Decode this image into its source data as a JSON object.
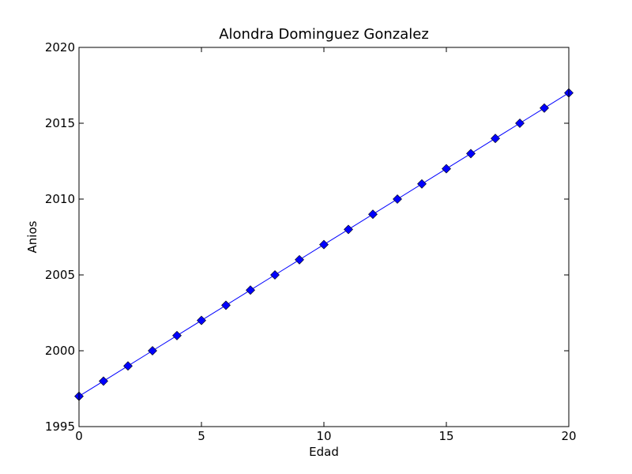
{
  "chart_data": {
    "type": "line",
    "title": "Alondra Dominguez Gonzalez",
    "xlabel": "Edad",
    "ylabel": "Anios",
    "xlim": [
      0,
      20
    ],
    "ylim": [
      1995,
      2020
    ],
    "x_ticks": [
      0,
      5,
      10,
      15,
      20
    ],
    "y_ticks": [
      1995,
      2000,
      2005,
      2010,
      2015,
      2020
    ],
    "grid": false,
    "series": [
      {
        "color": "#0000ff",
        "marker": "diamond",
        "x": [
          0,
          1,
          2,
          3,
          4,
          5,
          6,
          7,
          8,
          9,
          10,
          11,
          12,
          13,
          14,
          15,
          16,
          17,
          18,
          19,
          20
        ],
        "y": [
          1997,
          1998,
          1999,
          2000,
          2001,
          2002,
          2003,
          2004,
          2005,
          2006,
          2007,
          2008,
          2009,
          2010,
          2011,
          2012,
          2013,
          2014,
          2015,
          2016,
          2017
        ]
      }
    ]
  }
}
